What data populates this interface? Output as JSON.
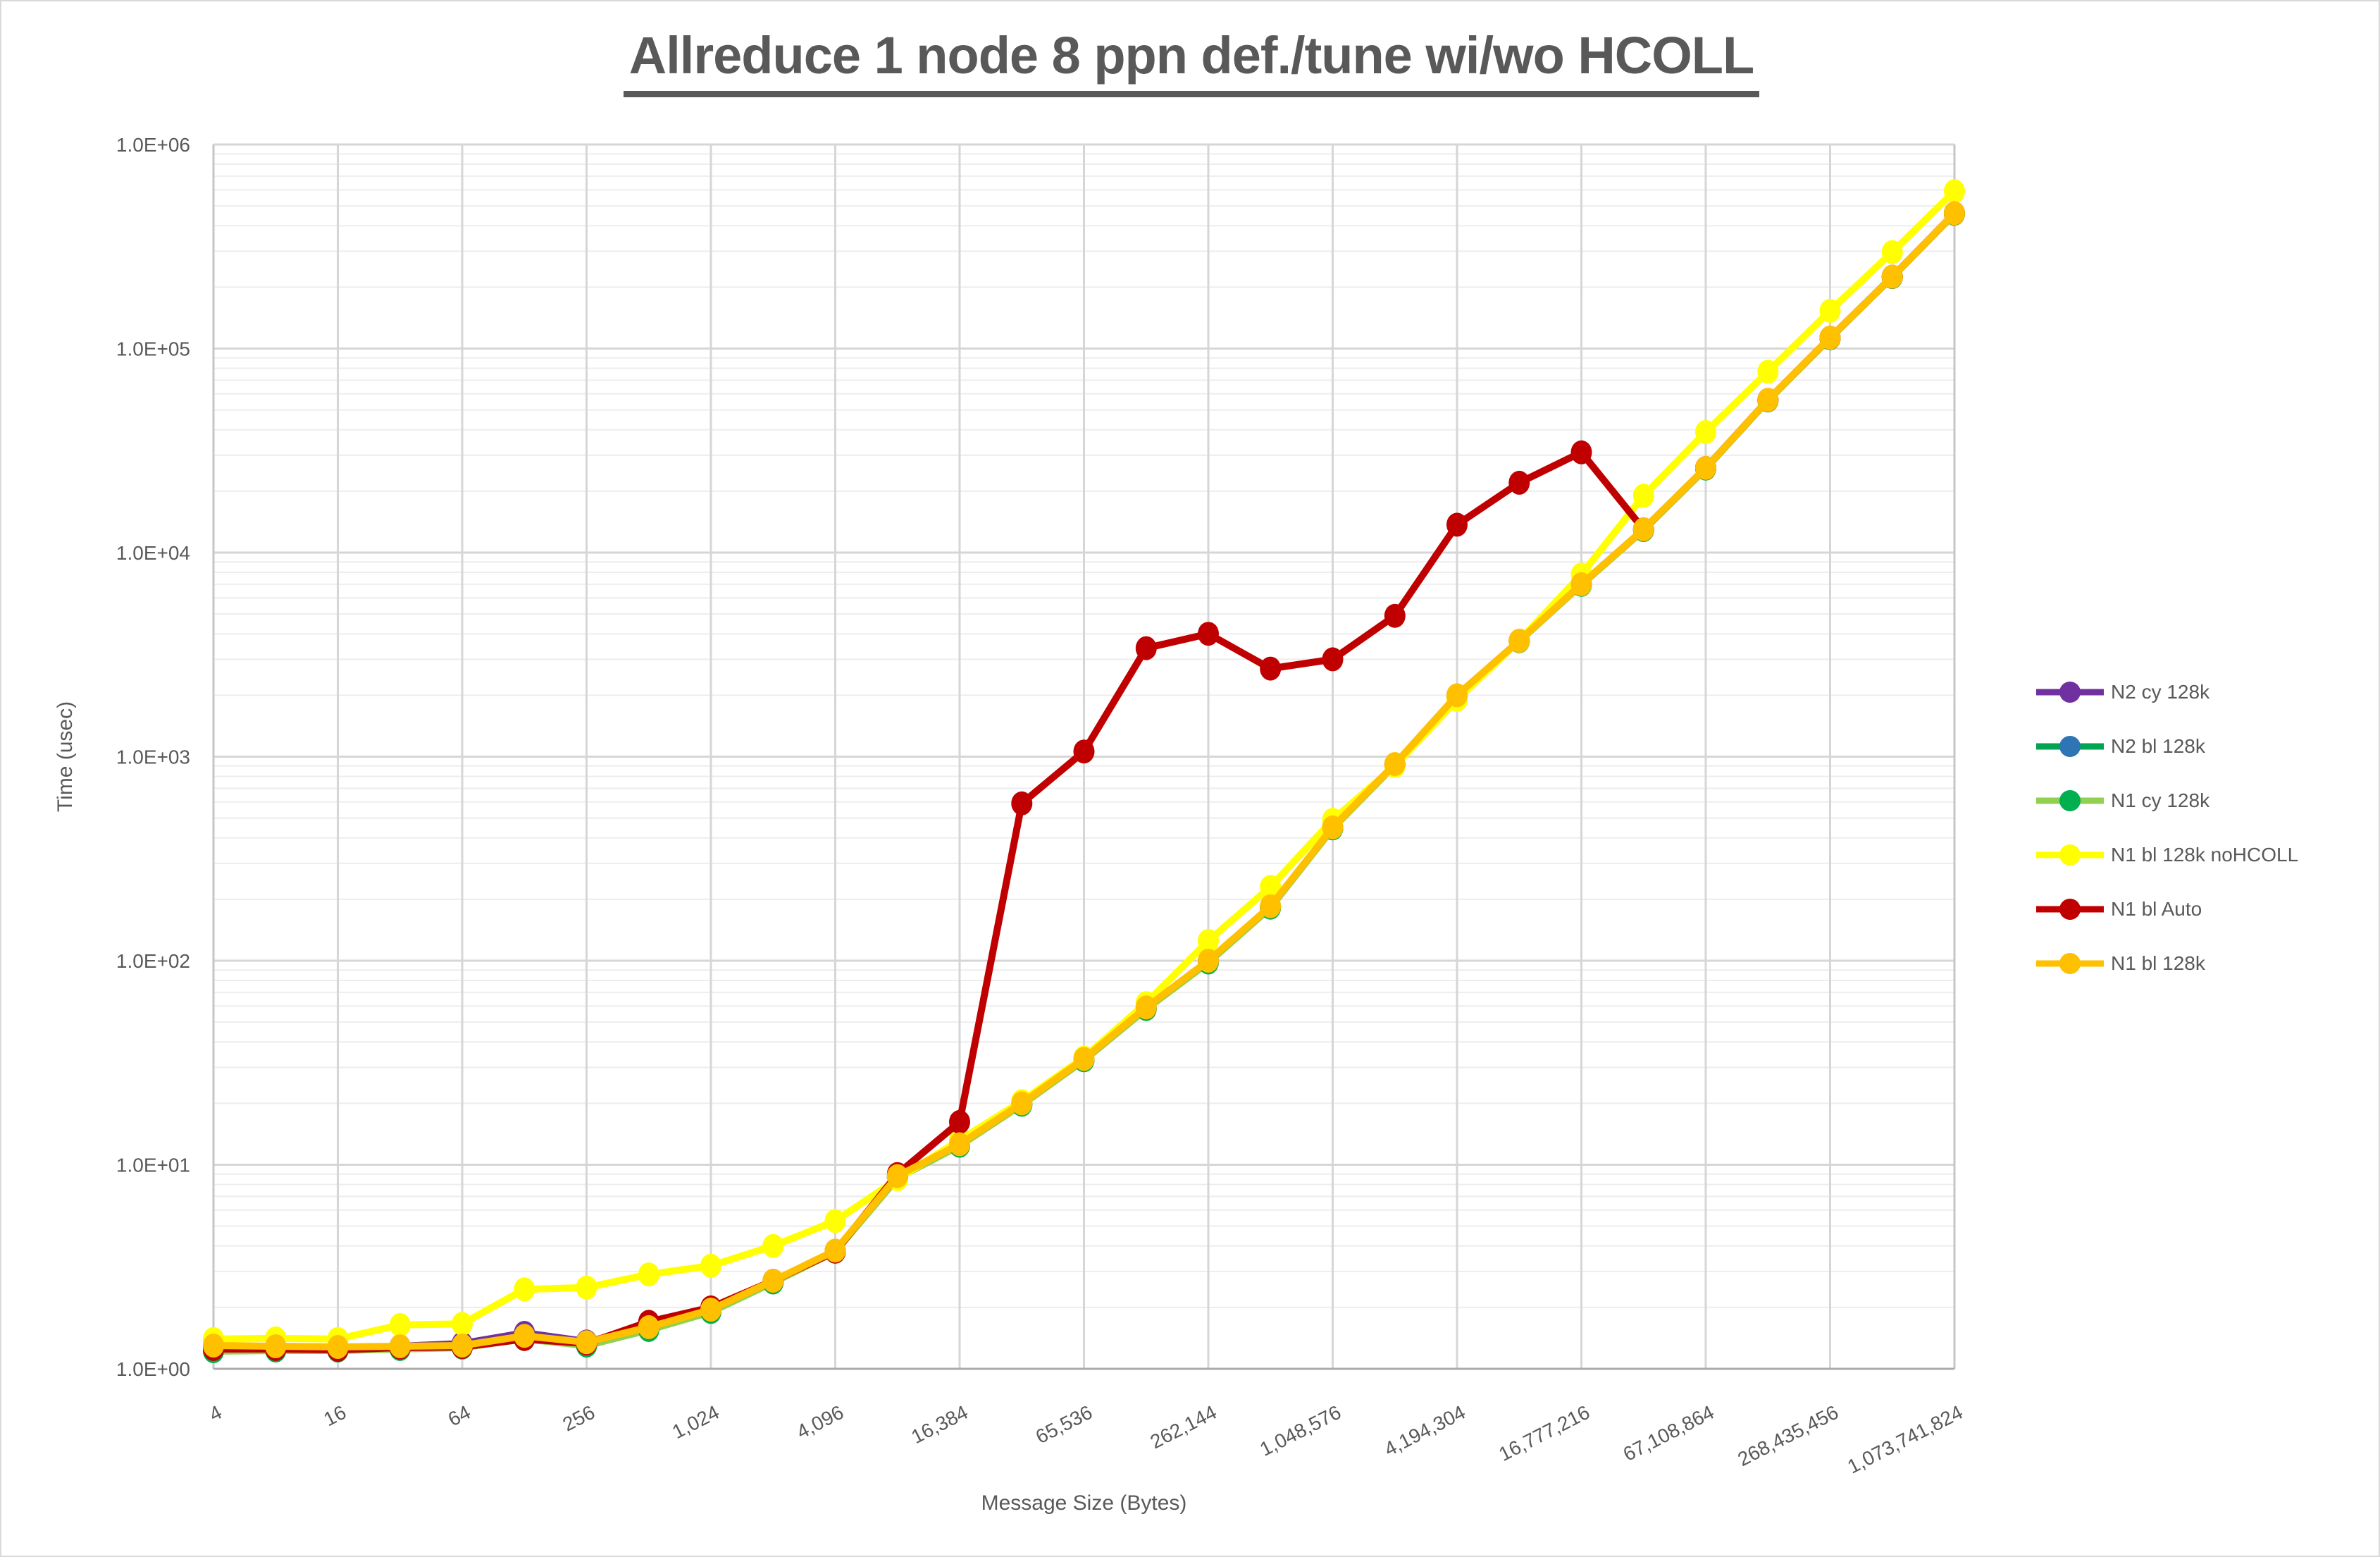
{
  "window": {
    "background": "#FFFFFF",
    "border_color": "#D9D9D9"
  },
  "grid": {
    "major_color": "#D6D6D6",
    "minor_color": "#EDEDED",
    "left_spine_color": "#C6C6C6",
    "bottom_spine_color": "#ABABAB",
    "minor_horizontal_log_lines": true,
    "vertical_gridlines_at": "every power of 4"
  },
  "legend": {
    "position": "right",
    "text_color": "#595959"
  },
  "chart_data": {
    "type": "line",
    "title": "Allreduce 1 node 8 ppn def./tune wi/wo HCOLL",
    "xlabel": "Message Size (Bytes)",
    "ylabel": "Time (usec)",
    "x_scale": "log2",
    "y_scale": "log10",
    "xlim": [
      4,
      1073741824
    ],
    "ylim": [
      1,
      1000000
    ],
    "grid": true,
    "legend_position": "right",
    "y_tick_labels": [
      "1.0E+00",
      "1.0E+01",
      "1.0E+02",
      "1.0E+03",
      "1.0E+04",
      "1.0E+05",
      "1.0E+06"
    ],
    "x_tick_values": [
      4,
      16,
      64,
      256,
      1024,
      4096,
      16384,
      65536,
      262144,
      1048576,
      4194304,
      16777216,
      67108864,
      268435456,
      1073741824
    ],
    "x_tick_labels": [
      "4",
      "16",
      "64",
      "256",
      "1,024",
      "4,096",
      "16,384",
      "65,536",
      "262,144",
      "1,048,576",
      "4,194,304",
      "16,777,216",
      "67,108,864",
      "268,435,456",
      "1,073,741,824"
    ],
    "x": [
      4,
      8,
      16,
      32,
      64,
      128,
      256,
      512,
      1024,
      2048,
      4096,
      8192,
      16384,
      32768,
      65536,
      131072,
      262144,
      524288,
      1048576,
      2097152,
      4194304,
      8388608,
      16777216,
      33554432,
      67108864,
      134217728,
      268435456,
      536870912,
      1073741824
    ],
    "series": [
      {
        "name": "N2 cy 128k",
        "line_color": "#7030A0",
        "marker_color": "#7030A0",
        "values": [
          1.26,
          1.26,
          1.26,
          1.29,
          1.33,
          1.5,
          1.36,
          1.58,
          1.93,
          2.68,
          3.78,
          8.7,
          12.55,
          19.9,
          32.8,
          58.7,
          99.5,
          184,
          448,
          916,
          1995,
          3695,
          6990,
          12980,
          25950,
          55900,
          112800,
          224700,
          459500
        ]
      },
      {
        "name": "N2 bl 128k",
        "line_color": "#00A550",
        "marker_color": "#2E75B6",
        "values": [
          1.23,
          1.24,
          1.23,
          1.26,
          1.28,
          1.41,
          1.31,
          1.56,
          1.92,
          2.66,
          3.77,
          8.65,
          12.5,
          19.8,
          32.7,
          58.5,
          99,
          183,
          447,
          913,
          1990,
          3690,
          6970,
          12950,
          25900,
          55800,
          112700,
          224500,
          459000
        ]
      },
      {
        "name": "N1 cy 128k",
        "line_color": "#92D050",
        "marker_color": "#00B050",
        "values": [
          1.22,
          1.23,
          1.23,
          1.25,
          1.27,
          1.4,
          1.3,
          1.55,
          1.9,
          2.65,
          3.75,
          8.6,
          12.4,
          19.7,
          32.5,
          58,
          98,
          182,
          445,
          910,
          1980,
          3680,
          6950,
          12900,
          25800,
          55700,
          112500,
          224000,
          458000
        ]
      },
      {
        "name": "N1 bl 128k noHCOLL",
        "line_color": "#FFFF00",
        "marker_color": "#FFFF00",
        "values": [
          1.4,
          1.41,
          1.4,
          1.64,
          1.66,
          2.45,
          2.5,
          2.9,
          3.2,
          4.0,
          5.3,
          8.5,
          13.2,
          20.5,
          33.5,
          62,
          125,
          230,
          490,
          900,
          1900,
          3700,
          7800,
          19000,
          39000,
          77000,
          153000,
          297000,
          590000
        ]
      },
      {
        "name": "N1 bl Auto",
        "line_color": "#C00000",
        "marker_color": "#C00000",
        "values": [
          1.25,
          1.25,
          1.24,
          1.27,
          1.28,
          1.4,
          1.33,
          1.7,
          2.0,
          2.7,
          3.75,
          9.0,
          16.2,
          590,
          1060,
          3400,
          4000,
          2700,
          3000,
          4900,
          13700,
          22000,
          31000,
          13000,
          26000,
          56000,
          113000,
          225000,
          460000
        ]
      },
      {
        "name": "N1 bl 128k",
        "line_color": "#FFC000",
        "marker_color": "#FFC000",
        "values": [
          1.3,
          1.29,
          1.28,
          1.29,
          1.3,
          1.45,
          1.35,
          1.6,
          1.95,
          2.7,
          3.8,
          8.8,
          12.6,
          20,
          33,
          59,
          100,
          185,
          450,
          920,
          2000,
          3700,
          7000,
          13000,
          26000,
          56000,
          113000,
          225000,
          460000
        ]
      }
    ],
    "legend_order": [
      "N2 cy 128k",
      "N2 bl 128k",
      "N1 cy 128k",
      "N1 bl 128k noHCOLL",
      "N1 bl Auto",
      "N1 bl 128k"
    ]
  }
}
